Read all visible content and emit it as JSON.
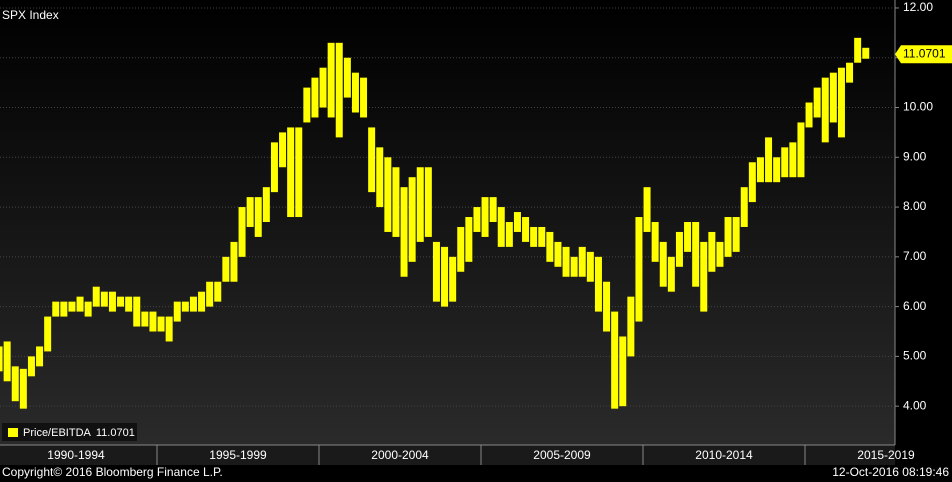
{
  "chart_data": {
    "type": "range-bar",
    "title": "SPX Index",
    "series": [
      {
        "name": "Price/EBITDA",
        "color": "#ffff00",
        "low": [
          4.7,
          4.5,
          4.1,
          3.95,
          4.6,
          4.8,
          5.1,
          5.8,
          5.8,
          5.9,
          5.9,
          5.8,
          6.0,
          6.0,
          5.9,
          6.0,
          5.9,
          5.6,
          5.6,
          5.5,
          5.5,
          5.3,
          5.7,
          5.9,
          5.9,
          5.9,
          6.0,
          6.1,
          6.5,
          6.5,
          7.0,
          7.6,
          7.4,
          7.7,
          8.3,
          8.8,
          7.8,
          7.8,
          9.7,
          9.8,
          10.0,
          9.8,
          9.4,
          10.2,
          9.9,
          9.8,
          8.3,
          8.0,
          7.5,
          7.4,
          6.6,
          6.9,
          7.3,
          7.4,
          6.1,
          6.0,
          6.1,
          6.7,
          6.9,
          7.5,
          7.4,
          7.7,
          7.2,
          7.2,
          7.5,
          7.3,
          7.2,
          7.2,
          6.9,
          6.8,
          6.6,
          6.6,
          6.6,
          6.5,
          5.9,
          5.5,
          3.95,
          4.0,
          5.0,
          5.7,
          7.5,
          6.9,
          6.4,
          6.3,
          6.8,
          7.1,
          6.4,
          5.9,
          6.7,
          6.8,
          7.0,
          7.1,
          7.6,
          8.1,
          8.5,
          8.5,
          8.5,
          8.6,
          8.6,
          8.6,
          9.6,
          9.8,
          9.3,
          9.7,
          9.4,
          10.5,
          10.9,
          10.98
        ],
        "high": [
          5.2,
          5.3,
          4.8,
          4.75,
          5.0,
          5.2,
          5.8,
          6.1,
          6.1,
          6.1,
          6.2,
          6.1,
          6.4,
          6.3,
          6.3,
          6.2,
          6.2,
          6.2,
          5.9,
          5.9,
          5.8,
          5.8,
          6.1,
          6.1,
          6.2,
          6.3,
          6.5,
          6.5,
          7.0,
          7.3,
          8.0,
          8.2,
          8.2,
          8.4,
          9.3,
          9.5,
          9.6,
          9.6,
          10.4,
          10.6,
          10.8,
          11.3,
          11.3,
          11.0,
          10.7,
          10.6,
          9.6,
          9.2,
          9.0,
          8.8,
          8.4,
          8.6,
          8.8,
          8.8,
          7.3,
          7.2,
          7.0,
          7.6,
          7.8,
          8.0,
          8.2,
          8.2,
          8.0,
          7.7,
          7.9,
          7.8,
          7.6,
          7.6,
          7.5,
          7.3,
          7.2,
          7.0,
          7.2,
          7.1,
          7.0,
          6.5,
          5.9,
          5.4,
          6.2,
          7.8,
          8.4,
          7.7,
          7.3,
          7.0,
          7.5,
          7.7,
          7.7,
          7.3,
          7.5,
          7.3,
          7.8,
          7.8,
          8.4,
          8.9,
          9.0,
          9.4,
          9.0,
          9.2,
          9.3,
          9.7,
          10.1,
          10.4,
          10.6,
          10.7,
          10.8,
          10.9,
          11.4,
          11.2
        ]
      }
    ],
    "last_value": 11.0701,
    "periods": [
      "1990-1994",
      "1995-1999",
      "2000-2004",
      "2005-2009",
      "2010-2014",
      "2015-2019"
    ],
    "bars_per_period": 20,
    "ylim": [
      3.22,
      12.16
    ],
    "yticks": [
      {
        "value": 4,
        "label": "4.00"
      },
      {
        "value": 5,
        "label": "5.00"
      },
      {
        "value": 6,
        "label": "6.00"
      },
      {
        "value": 7,
        "label": "7.00"
      },
      {
        "value": 8,
        "label": "8.00"
      },
      {
        "value": 9,
        "label": "9.00"
      },
      {
        "value": 10,
        "label": "10.00"
      },
      {
        "value": 11,
        "label": "11.00"
      },
      {
        "value": 12,
        "label": "12.00"
      }
    ],
    "grid": true
  },
  "footer": {
    "copyright": "Copyright© 2016 Bloomberg Finance L.P.",
    "timestamp": "12-Oct-2016 08:19:46"
  }
}
